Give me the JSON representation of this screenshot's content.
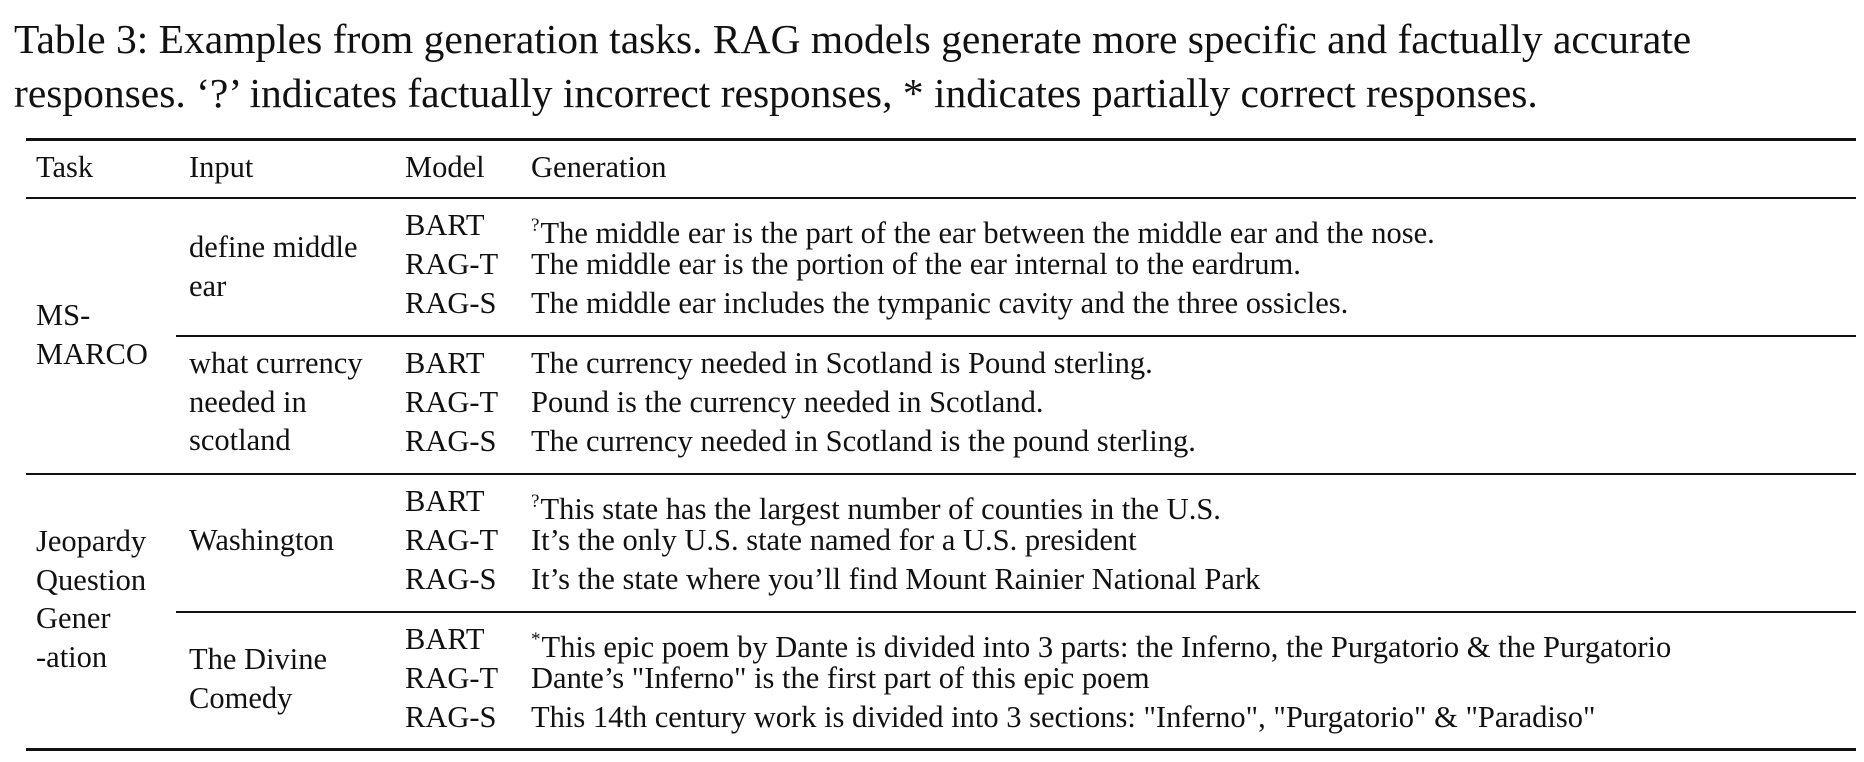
{
  "caption": {
    "line1": "Table 3: Examples from generation tasks. RAG models generate more specific and factually accurate",
    "line2": "responses. ‘?’ indicates factually incorrect responses, * indicates partially correct responses."
  },
  "table": {
    "headers": {
      "task": "Task",
      "input": "Input",
      "model": "Model",
      "generation": "Generation"
    },
    "groups": [
      {
        "task_lines": [
          "MS-",
          "MARCO"
        ],
        "examples": [
          {
            "input_lines": [
              "define middle",
              "ear"
            ],
            "rows": [
              {
                "model": "BART",
                "marker": "?",
                "generation": "The middle ear is the part of the ear between the middle ear and the nose."
              },
              {
                "model": "RAG-T",
                "marker": "",
                "generation": "The middle ear is the portion of the ear internal to the eardrum."
              },
              {
                "model": "RAG-S",
                "marker": "",
                "generation": "The middle ear includes the tympanic cavity and the three ossicles."
              }
            ]
          },
          {
            "input_lines": [
              "what currency",
              "needed in",
              "scotland"
            ],
            "rows": [
              {
                "model": "BART",
                "marker": "",
                "generation": "The currency needed in Scotland is Pound sterling."
              },
              {
                "model": "RAG-T",
                "marker": "",
                "generation": "Pound is the currency needed in Scotland."
              },
              {
                "model": "RAG-S",
                "marker": "",
                "generation": "The currency needed in Scotland is the pound sterling."
              }
            ]
          }
        ]
      },
      {
        "task_lines": [
          "Jeopardy",
          "Question",
          "Gener",
          "-ation"
        ],
        "examples": [
          {
            "input_lines": [
              "Washington"
            ],
            "rows": [
              {
                "model": "BART",
                "marker": "?",
                "generation": "This state has the largest number of counties in the U.S."
              },
              {
                "model": "RAG-T",
                "marker": "",
                "generation": "It’s the only U.S. state named for a U.S. president"
              },
              {
                "model": "RAG-S",
                "marker": "",
                "generation": "It’s the state where you’ll find Mount Rainier National Park"
              }
            ]
          },
          {
            "input_lines": [
              "The Divine",
              "Comedy"
            ],
            "rows": [
              {
                "model": "BART",
                "marker": "*",
                "generation": "This epic poem by Dante is divided into 3 parts: the Inferno, the Purgatorio & the Purgatorio"
              },
              {
                "model": "RAG-T",
                "marker": "",
                "generation": "Dante’s \"Inferno\" is the first part of this epic poem"
              },
              {
                "model": "RAG-S",
                "marker": "",
                "generation": "This 14th century work is divided into 3 sections: \"Inferno\", \"Purgatorio\" & \"Paradiso\""
              }
            ]
          }
        ]
      }
    ]
  }
}
